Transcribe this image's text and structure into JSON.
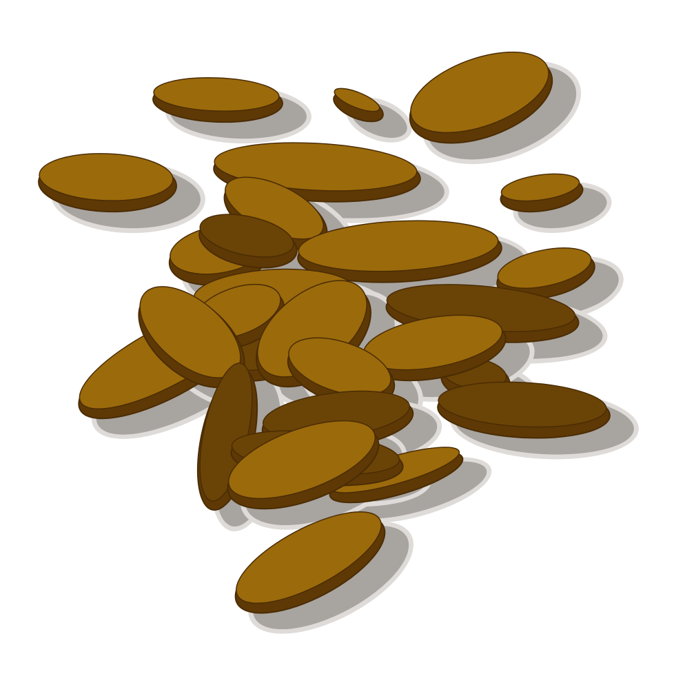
{
  "colors": {
    "background": "#ffffff",
    "seed_top": "#9b6a0b",
    "seed_side": "#5e3905",
    "seed_dark_top": "#6a4306",
    "seed_outline": "#4a2c04",
    "shadow": "#a8a4a0",
    "shadow_halo": "#dedbd8"
  }
}
